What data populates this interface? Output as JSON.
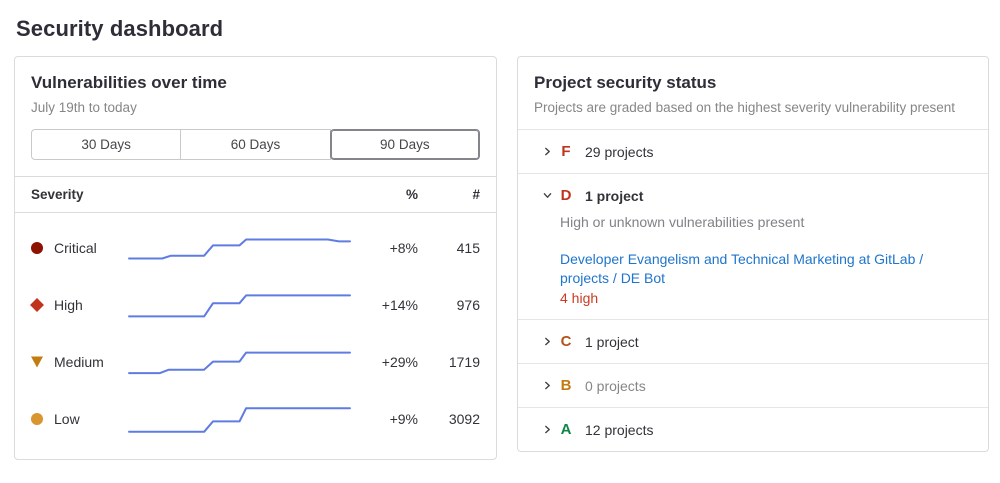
{
  "page": {
    "title": "Security dashboard"
  },
  "vulnerabilities_panel": {
    "title": "Vulnerabilities over time",
    "subtitle": "July 19th to today",
    "chart_line_color": "#5f7ce2",
    "range_buttons": [
      {
        "label": "30 Days",
        "selected": false
      },
      {
        "label": "60 Days",
        "selected": false
      },
      {
        "label": "90 Days",
        "selected": true
      }
    ],
    "table": {
      "headers": {
        "severity": "Severity",
        "percent": "%",
        "count": "#"
      },
      "rows": [
        {
          "severity": "Critical",
          "icon": "severity-critical-icon",
          "shape": "circle",
          "color": "#8d1300",
          "percent": "+8%",
          "count": "415",
          "sparkline": [
            [
              0,
              0.16
            ],
            [
              0.15,
              0.16
            ],
            [
              0.19,
              0.26
            ],
            [
              0.34,
              0.26
            ],
            [
              0.38,
              0.63
            ],
            [
              0.5,
              0.63
            ],
            [
              0.53,
              0.84
            ],
            [
              0.9,
              0.84
            ],
            [
              0.95,
              0.77
            ],
            [
              1,
              0.77
            ]
          ]
        },
        {
          "severity": "High",
          "icon": "severity-high-icon",
          "shape": "diamond",
          "color": "#c0341d",
          "percent": "+14%",
          "count": "976",
          "sparkline": [
            [
              0,
              0.13
            ],
            [
              0.34,
              0.13
            ],
            [
              0.38,
              0.6
            ],
            [
              0.5,
              0.6
            ],
            [
              0.53,
              0.88
            ],
            [
              1,
              0.88
            ]
          ]
        },
        {
          "severity": "Medium",
          "icon": "severity-medium-icon",
          "shape": "triangle-down",
          "color": "#c17d10",
          "percent": "+29%",
          "count": "1719",
          "sparkline": [
            [
              0,
              0.14
            ],
            [
              0.14,
              0.14
            ],
            [
              0.18,
              0.26
            ],
            [
              0.34,
              0.26
            ],
            [
              0.38,
              0.55
            ],
            [
              0.5,
              0.55
            ],
            [
              0.53,
              0.87
            ],
            [
              1,
              0.87
            ]
          ]
        },
        {
          "severity": "Low",
          "icon": "severity-low-icon",
          "shape": "circle",
          "color": "#d99530",
          "percent": "+9%",
          "count": "3092",
          "sparkline": [
            [
              0,
              0.08
            ],
            [
              0.34,
              0.08
            ],
            [
              0.38,
              0.45
            ],
            [
              0.5,
              0.45
            ],
            [
              0.53,
              0.92
            ],
            [
              1,
              0.92
            ]
          ]
        }
      ]
    }
  },
  "project_status_panel": {
    "title": "Project security status",
    "subtitle": "Projects are graded based on the highest severity vulnerability present",
    "grades": [
      {
        "grade": "F",
        "color": "#c0341d",
        "count_label": "29 projects",
        "expanded": false
      },
      {
        "grade": "D",
        "color": "#c0341d",
        "count_label": "1 project",
        "expanded": true,
        "description": "High or unknown vulnerabilities present",
        "project_link": "Developer Evangelism and Technical Marketing at GitLab / projects / DE Bot",
        "vuln_summary": "4 high"
      },
      {
        "grade": "C",
        "color": "#b4541a",
        "count_label": "1 project",
        "expanded": false
      },
      {
        "grade": "B",
        "color": "#c17d10",
        "count_label": "0 projects",
        "expanded": false,
        "muted": true
      },
      {
        "grade": "A",
        "color": "#108548",
        "count_label": "12 projects",
        "expanded": false
      }
    ]
  },
  "chart_data": {
    "type": "line",
    "title": "Vulnerabilities over time (sparklines, July 19th to today, 90 Days)",
    "series": [
      {
        "name": "Critical",
        "change": "+8%",
        "current_count": 415,
        "points_normalized": [
          [
            0,
            0.16
          ],
          [
            0.15,
            0.16
          ],
          [
            0.19,
            0.26
          ],
          [
            0.34,
            0.26
          ],
          [
            0.38,
            0.63
          ],
          [
            0.5,
            0.63
          ],
          [
            0.53,
            0.84
          ],
          [
            0.9,
            0.84
          ],
          [
            0.95,
            0.77
          ],
          [
            1,
            0.77
          ]
        ]
      },
      {
        "name": "High",
        "change": "+14%",
        "current_count": 976,
        "points_normalized": [
          [
            0,
            0.13
          ],
          [
            0.34,
            0.13
          ],
          [
            0.38,
            0.6
          ],
          [
            0.5,
            0.6
          ],
          [
            0.53,
            0.88
          ],
          [
            1,
            0.88
          ]
        ]
      },
      {
        "name": "Medium",
        "change": "+29%",
        "current_count": 1719,
        "points_normalized": [
          [
            0,
            0.14
          ],
          [
            0.14,
            0.14
          ],
          [
            0.18,
            0.26
          ],
          [
            0.34,
            0.26
          ],
          [
            0.38,
            0.55
          ],
          [
            0.5,
            0.55
          ],
          [
            0.53,
            0.87
          ],
          [
            1,
            0.87
          ]
        ]
      },
      {
        "name": "Low",
        "change": "+9%",
        "current_count": 3092,
        "points_normalized": [
          [
            0,
            0.08
          ],
          [
            0.34,
            0.08
          ],
          [
            0.38,
            0.45
          ],
          [
            0.5,
            0.45
          ],
          [
            0.53,
            0.92
          ],
          [
            1,
            0.92
          ]
        ]
      }
    ],
    "legend_position": "none",
    "grid": false,
    "axes_visible": false
  }
}
